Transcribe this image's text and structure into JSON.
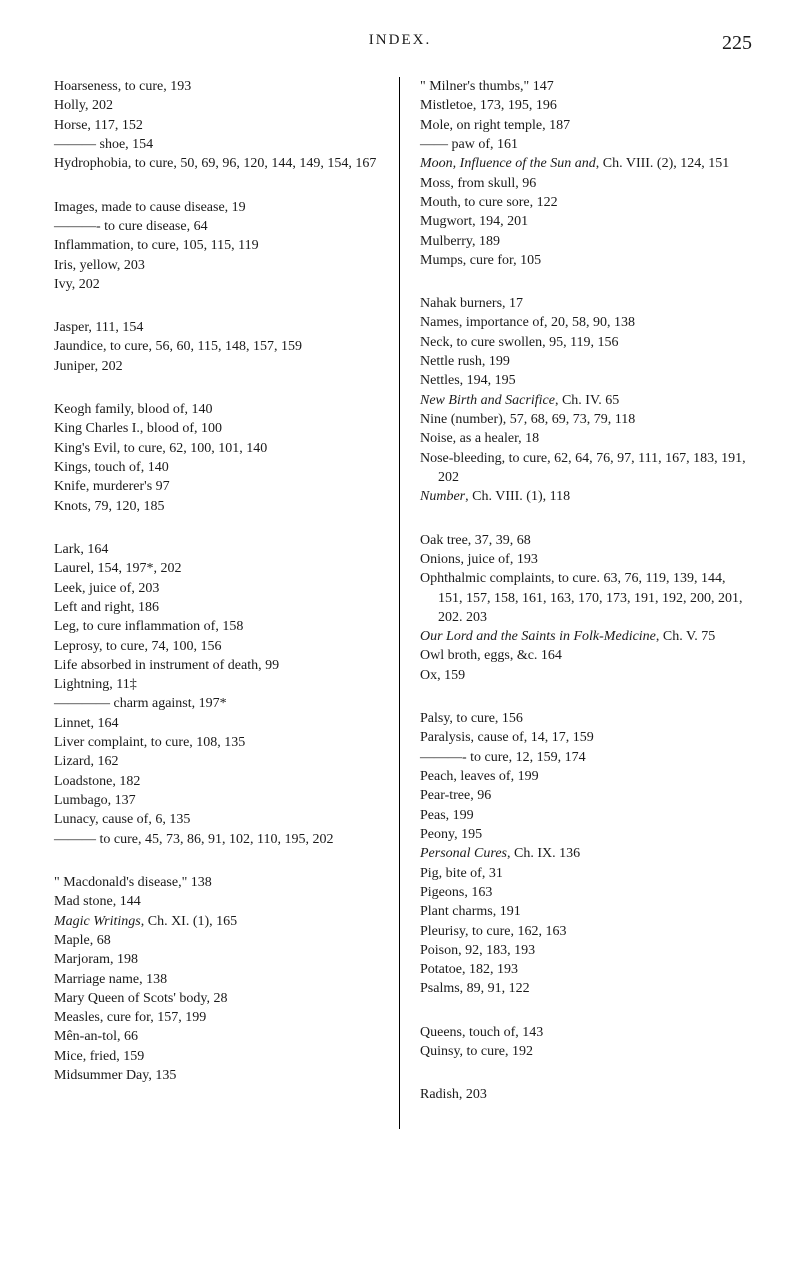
{
  "header": {
    "title": "INDEX.",
    "page": "225"
  },
  "left": {
    "b1": [
      "Hoarseness, to cure, 193",
      "Holly, 202",
      "Horse, 117, 152",
      "——— shoe, 154",
      "Hydrophobia, to cure, 50, 69, 96, 120, 144, 149, 154, 167"
    ],
    "b2": [
      "Images, made to cause disease, 19",
      "———- to cure disease, 64",
      "Inflammation, to cure, 105, 115, 119",
      "Iris, yellow, 203",
      "Ivy, 202"
    ],
    "b3": [
      "Jasper, 111, 154",
      "Jaundice, to cure, 56, 60, 115, 148, 157, 159",
      "Juniper, 202"
    ],
    "b4": [
      "Keogh family, blood of, 140",
      "King Charles I., blood of, 100",
      "King's Evil, to cure, 62, 100, 101, 140",
      "Kings, touch of, 140",
      "Knife, murderer's 97",
      "Knots, 79, 120, 185"
    ],
    "b5": [
      "Lark, 164",
      "Laurel, 154, 197*, 202",
      "Leek, juice of, 203",
      "Left and right, 186",
      "Leg, to cure inflammation of, 158",
      "Leprosy, to cure, 74, 100, 156",
      "Life absorbed in instrument of death, 99",
      "Lightning, 11‡",
      "———— charm against, 197*",
      "Linnet, 164",
      "Liver complaint, to cure, 108, 135",
      "Lizard, 162",
      "Loadstone, 182",
      "Lumbago, 137",
      "Lunacy, cause of, 6, 135",
      "——— to cure, 45, 73, 86, 91, 102, 110, 195, 202"
    ],
    "b6": [
      "\" Macdonald's disease,\" 138",
      "Mad stone, 144",
      "<em>Magic Writings</em>, Ch. XI. (1), 165",
      "Maple, 68",
      "Marjoram, 198",
      "Marriage name, 138",
      "Mary Queen of Scots' body, 28",
      "Measles, cure for, 157, 199",
      "Mên-an-tol, 66",
      "Mice, fried, 159",
      "Midsummer Day, 135"
    ]
  },
  "right": {
    "b1": [
      "\" Milner's thumbs,\" 147",
      "Mistletoe, 173, 195, 196",
      "Mole, on right temple, 187",
      "—— paw of, 161",
      "<em>Moon, Influence of the Sun and</em>, Ch. VIII. (2), 124, 151",
      "Moss, from skull, 96",
      "Mouth, to cure sore, 122",
      "Mugwort, 194, 201",
      "Mulberry, 189",
      "Mumps, cure for, 105"
    ],
    "b2": [
      "Nahak burners, 17",
      "Names, importance of, 20, 58, 90, 138",
      "Neck, to cure swollen, 95, 119, 156",
      "Nettle rush, 199",
      "Nettles, 194, 195",
      "<em>New Birth and Sacrifice</em>, Ch. IV. 65",
      "Nine (number), 57, 68, 69, 73, 79, 118",
      "Noise, as a healer, 18",
      "Nose-bleeding, to cure, 62, 64, 76, 97, 111, 167, 183, 191, 202",
      "<em>Number</em>, Ch. VIII. (1), 118"
    ],
    "b3": [
      "Oak tree, 37, 39, 68",
      "Onions, juice of, 193",
      "Ophthalmic complaints, to cure. 63, 76, 119, 139, 144, 151, 157, 158, 161, 163, 170, 173, 191, 192, 200, 201, 202. 203",
      "<em>Our Lord and the Saints in Folk-Medicine</em>, Ch. V. 75",
      "Owl broth, eggs, &c. 164",
      "Ox, 159"
    ],
    "b4": [
      "Palsy, to cure, 156",
      "Paralysis, cause of, 14, 17, 159",
      "———- to cure, 12, 159, 174",
      "Peach, leaves of, 199",
      "Pear-tree, 96",
      "Peas, 199",
      "Peony, 195",
      "<em>Personal Cures</em>, Ch. IX. 136",
      "Pig, bite of, 31",
      "Pigeons, 163",
      "Plant charms, 191",
      "Pleurisy, to cure, 162, 163",
      "Poison, 92, 183, 193",
      "Potatoe, 182, 193",
      "Psalms, 89, 91, 122"
    ],
    "b5": [
      "Queens, touch of, 143",
      "Quinsy, to cure, 192"
    ],
    "b6": [
      "Radish, 203"
    ]
  }
}
